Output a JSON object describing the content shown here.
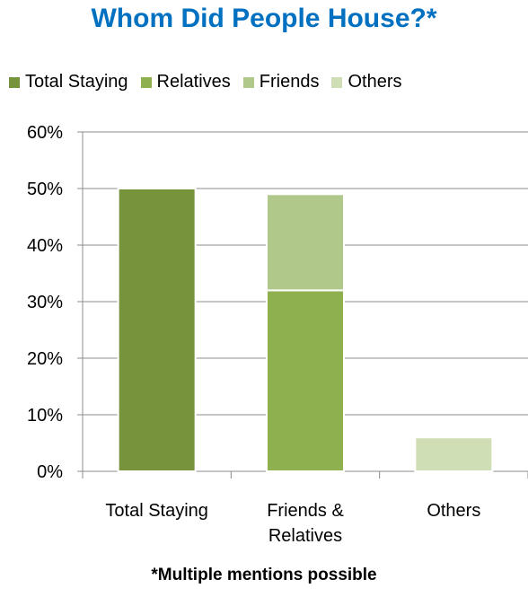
{
  "chart_data": {
    "type": "bar",
    "stacked": true,
    "title": "Whom Did People House?*",
    "footnote": "*Multiple mentions possible",
    "categories": [
      [
        "Total Staying"
      ],
      [
        "Friends &",
        "Relatives"
      ],
      [
        "Others"
      ]
    ],
    "series": [
      {
        "name": "Total Staying",
        "color": "#77933c",
        "values": [
          50,
          0,
          0
        ]
      },
      {
        "name": "Relatives",
        "color": "#8fb04f",
        "values": [
          0,
          32,
          0
        ]
      },
      {
        "name": "Friends",
        "color": "#b0c98a",
        "values": [
          0,
          17,
          0
        ]
      },
      {
        "name": "Others",
        "color": "#cfdeb4",
        "values": [
          0,
          0,
          6
        ]
      }
    ],
    "ylim": [
      0,
      60
    ],
    "yticks": [
      "0%",
      "10%",
      "20%",
      "30%",
      "40%",
      "50%",
      "60%"
    ],
    "grid": true,
    "legend": "top"
  }
}
